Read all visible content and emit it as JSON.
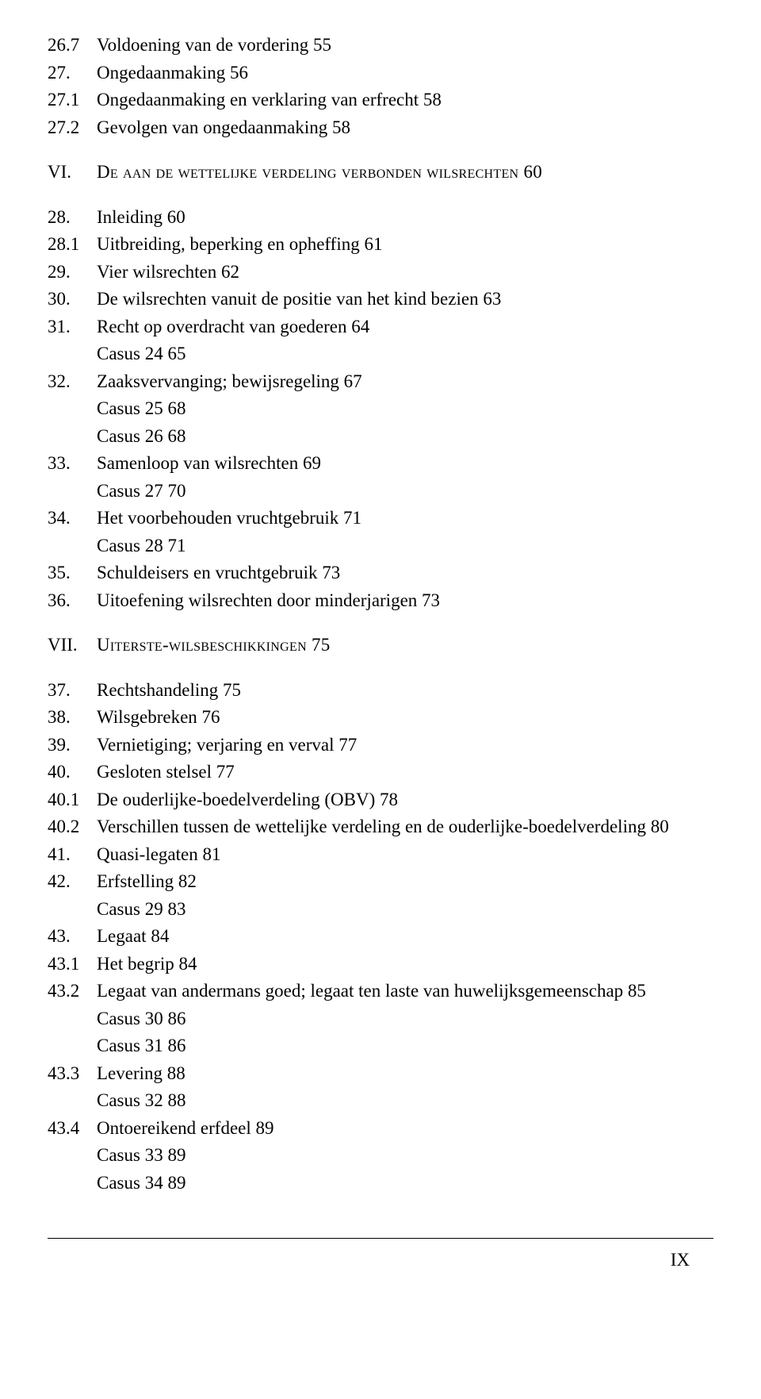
{
  "lines": [
    {
      "num": "26.7",
      "text": "Voldoening van de vordering   55"
    },
    {
      "num": "27.",
      "text": "Ongedaanmaking   56"
    },
    {
      "num": "27.1",
      "text": "Ongedaanmaking en verklaring van erfrecht   58"
    },
    {
      "num": "27.2",
      "text": "Gevolgen van ongedaanmaking   58"
    },
    {
      "chapter": true,
      "num": "VI.",
      "text": "De aan de wettelijke verdeling verbonden wilsrechten   60"
    },
    {
      "num": "28.",
      "text": "Inleiding   60"
    },
    {
      "num": "28.1",
      "text": "Uitbreiding, beperking en opheffing   61"
    },
    {
      "num": "29.",
      "text": "Vier wilsrechten   62"
    },
    {
      "num": "30.",
      "text": "De wilsrechten vanuit de positie van het kind bezien   63"
    },
    {
      "num": "31.",
      "text": "Recht op overdracht van goederen   64"
    },
    {
      "sub": true,
      "text": "Casus 24   65"
    },
    {
      "num": "32.",
      "text": "Zaaksvervanging; bewijsregeling   67"
    },
    {
      "sub": true,
      "text": "Casus 25   68"
    },
    {
      "sub": true,
      "text": "Casus 26   68"
    },
    {
      "num": "33.",
      "text": "Samenloop van wilsrechten   69"
    },
    {
      "sub": true,
      "text": "Casus 27   70"
    },
    {
      "num": "34.",
      "text": "Het voorbehouden vruchtgebruik   71"
    },
    {
      "sub": true,
      "text": "Casus 28   71"
    },
    {
      "num": "35.",
      "text": "Schuldeisers en vruchtgebruik   73"
    },
    {
      "num": "36.",
      "text": "Uitoefening wilsrechten door minderjarigen   73"
    },
    {
      "chapter": true,
      "num": "VII.",
      "text": "Uiterste-wilsbeschikkingen   75"
    },
    {
      "num": "37.",
      "text": "Rechtshandeling   75"
    },
    {
      "num": "38.",
      "text": "Wilsgebreken   76"
    },
    {
      "num": "39.",
      "text": "Vernietiging; verjaring en verval   77"
    },
    {
      "num": "40.",
      "text": "Gesloten stelsel   77"
    },
    {
      "num": "40.1",
      "text": "De ouderlijke-boedelverdeling (OBV)   78"
    },
    {
      "num": "40.2",
      "text": "Verschillen tussen de wettelijke verdeling en de ouderlijke-boedelverdeling   80"
    },
    {
      "num": "41.",
      "text": "Quasi-legaten   81"
    },
    {
      "num": "42.",
      "text": "Erfstelling   82"
    },
    {
      "sub": true,
      "text": "Casus 29   83"
    },
    {
      "num": "43.",
      "text": "Legaat   84"
    },
    {
      "num": "43.1",
      "text": "Het begrip   84"
    },
    {
      "num": "43.2",
      "text": "Legaat van andermans goed; legaat ten laste van huwelijksgemeenschap   85"
    },
    {
      "sub": true,
      "text": "Casus 30   86"
    },
    {
      "sub": true,
      "text": "Casus 31   86"
    },
    {
      "num": "43.3",
      "text": "Levering   88"
    },
    {
      "sub": true,
      "text": "Casus 32   88"
    },
    {
      "num": "43.4",
      "text": "Ontoereikend erfdeel   89"
    },
    {
      "sub": true,
      "text": "Casus 33   89"
    },
    {
      "sub": true,
      "text": "Casus 34   89"
    }
  ],
  "pageNumber": "IX"
}
